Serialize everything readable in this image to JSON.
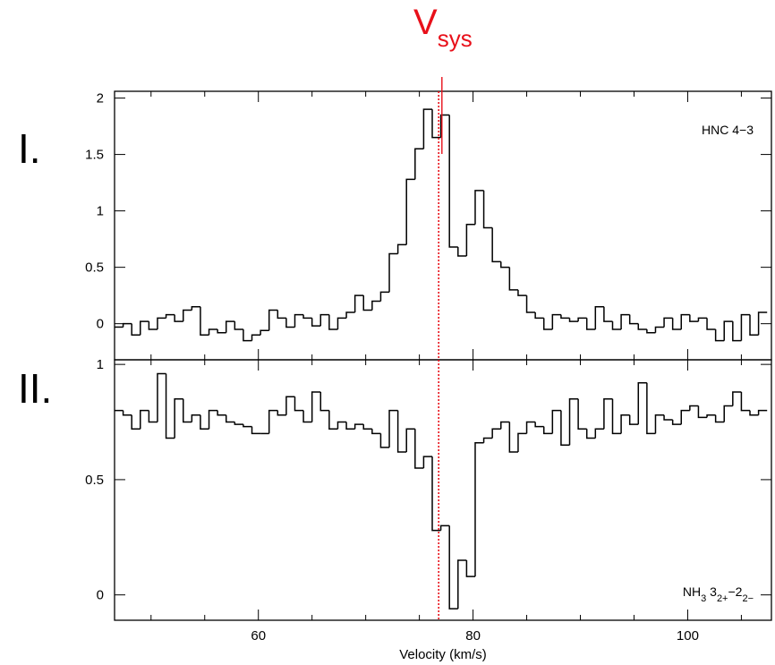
{
  "chart_data": [
    {
      "type": "line",
      "drawstyle": "steps-mid",
      "panel_label": "I.",
      "label": [
        {
          "text": "HNC 4−3",
          "sub": false
        }
      ],
      "x": [
        47.0,
        47.8,
        48.6,
        49.4,
        50.2,
        51.0,
        51.8,
        52.6,
        53.4,
        54.2,
        55.0,
        55.8,
        56.6,
        57.4,
        58.2,
        59.0,
        59.8,
        60.6,
        61.4,
        62.2,
        63.0,
        63.8,
        64.6,
        65.4,
        66.2,
        67.0,
        67.8,
        68.6,
        69.4,
        70.2,
        71.0,
        71.8,
        72.6,
        73.4,
        74.2,
        75.0,
        75.8,
        76.6,
        77.4,
        78.2,
        79.0,
        79.8,
        80.6,
        81.4,
        82.2,
        83.0,
        83.8,
        84.6,
        85.4,
        86.2,
        87.0,
        87.8,
        88.6,
        89.4,
        90.2,
        91.0,
        91.8,
        92.6,
        93.4,
        94.2,
        95.0,
        95.8,
        96.6,
        97.4,
        98.2,
        99.0,
        99.8,
        100.6,
        101.4,
        102.2,
        103.0,
        103.8,
        104.6,
        105.4,
        106.2,
        107.0
      ],
      "series": [
        {
          "color": "#000000",
          "values": [
            -0.03,
            0.0,
            -0.1,
            0.02,
            -0.05,
            0.05,
            0.08,
            0.02,
            0.12,
            0.15,
            -0.1,
            -0.05,
            -0.08,
            0.02,
            -0.05,
            -0.15,
            -0.1,
            -0.06,
            0.12,
            0.05,
            -0.03,
            0.08,
            0.05,
            -0.02,
            0.08,
            -0.05,
            0.05,
            0.1,
            0.25,
            0.12,
            0.2,
            0.28,
            0.62,
            0.7,
            1.28,
            1.55,
            1.9,
            1.65,
            1.85,
            0.68,
            0.6,
            0.88,
            1.18,
            0.85,
            0.55,
            0.5,
            0.3,
            0.25,
            0.1,
            0.05,
            -0.05,
            0.08,
            0.05,
            0.02,
            0.05,
            -0.05,
            0.15,
            0.02,
            -0.05,
            0.08,
            0.0,
            -0.05,
            -0.08,
            -0.03,
            0.05,
            -0.05,
            0.08,
            0.02,
            0.05,
            -0.05,
            -0.15,
            0.02,
            -0.15,
            0.08,
            -0.1,
            0.1
          ]
        }
      ],
      "xlim": [
        46.6,
        107.8
      ],
      "xticks": [
        60,
        80,
        100
      ],
      "xminor": [
        50,
        55,
        65,
        70,
        75,
        85,
        90,
        95,
        105
      ],
      "ylim": [
        -0.32,
        2.06
      ],
      "yticks": [
        0,
        0.5,
        1,
        1.5,
        2
      ]
    },
    {
      "type": "line",
      "drawstyle": "steps-mid",
      "panel_label": "II.",
      "label": [
        {
          "text": "NH",
          "sub": false
        },
        {
          "text": "3",
          "sub": true
        },
        {
          "text": " 3",
          "sub": false
        },
        {
          "text": "2+",
          "sub": true
        },
        {
          "text": "−2",
          "sub": false
        },
        {
          "text": "2−",
          "sub": true
        }
      ],
      "xlabel": "Velocity (km/s)",
      "x": [
        47.0,
        47.8,
        48.6,
        49.4,
        50.2,
        51.0,
        51.8,
        52.6,
        53.4,
        54.2,
        55.0,
        55.8,
        56.6,
        57.4,
        58.2,
        59.0,
        59.8,
        60.6,
        61.4,
        62.2,
        63.0,
        63.8,
        64.6,
        65.4,
        66.2,
        67.0,
        67.8,
        68.6,
        69.4,
        70.2,
        71.0,
        71.8,
        72.6,
        73.4,
        74.2,
        75.0,
        75.8,
        76.6,
        77.4,
        78.2,
        79.0,
        79.8,
        80.6,
        81.4,
        82.2,
        83.0,
        83.8,
        84.6,
        85.4,
        86.2,
        87.0,
        87.8,
        88.6,
        89.4,
        90.2,
        91.0,
        91.8,
        92.6,
        93.4,
        94.2,
        95.0,
        95.8,
        96.6,
        97.4,
        98.2,
        99.0,
        99.8,
        100.6,
        101.4,
        102.2,
        103.0,
        103.8,
        104.6,
        105.4,
        106.2,
        107.0
      ],
      "series": [
        {
          "color": "#000000",
          "values": [
            0.8,
            0.78,
            0.72,
            0.8,
            0.75,
            0.96,
            0.68,
            0.85,
            0.75,
            0.78,
            0.72,
            0.8,
            0.78,
            0.75,
            0.74,
            0.73,
            0.7,
            0.7,
            0.8,
            0.78,
            0.86,
            0.8,
            0.75,
            0.88,
            0.8,
            0.72,
            0.75,
            0.72,
            0.74,
            0.72,
            0.7,
            0.64,
            0.8,
            0.62,
            0.72,
            0.55,
            0.6,
            0.28,
            0.3,
            -0.06,
            0.15,
            0.08,
            0.66,
            0.68,
            0.72,
            0.75,
            0.62,
            0.7,
            0.75,
            0.73,
            0.7,
            0.8,
            0.65,
            0.85,
            0.72,
            0.68,
            0.72,
            0.85,
            0.7,
            0.78,
            0.74,
            0.92,
            0.7,
            0.78,
            0.76,
            0.74,
            0.8,
            0.82,
            0.77,
            0.78,
            0.75,
            0.82,
            0.88,
            0.8,
            0.78,
            0.8
          ]
        }
      ],
      "xlim": [
        46.6,
        107.8
      ],
      "xticks": [
        60,
        80,
        100
      ],
      "xminor": [
        50,
        55,
        65,
        70,
        75,
        85,
        90,
        95,
        105
      ],
      "ylim": [
        -0.11,
        1.02
      ],
      "yticks": [
        0,
        0.5,
        1
      ]
    }
  ],
  "annotation": {
    "text": "V",
    "sub": "sys",
    "color": "#e8101a",
    "dotted_x": 76.8,
    "line_x": 77.1
  }
}
